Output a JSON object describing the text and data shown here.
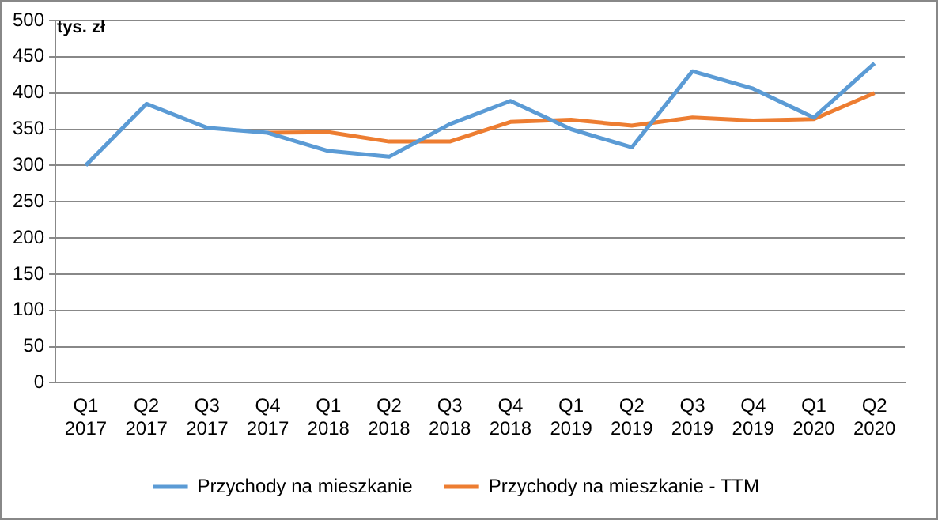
{
  "chart_data": {
    "type": "line",
    "ylabel": "tys. zł",
    "categories": [
      "Q1 2017",
      "Q2 2017",
      "Q3 2017",
      "Q4 2017",
      "Q1 2018",
      "Q2 2018",
      "Q3 2018",
      "Q4 2018",
      "Q1 2019",
      "Q2 2019",
      "Q3 2019",
      "Q4 2019",
      "Q1 2020",
      "Q2 2020"
    ],
    "series": [
      {
        "name": "Przychody na mieszkanie",
        "color": "#5b9bd5",
        "values": [
          300,
          385,
          352,
          345,
          320,
          312,
          357,
          389,
          350,
          325,
          430,
          406,
          366,
          441
        ]
      },
      {
        "name": "Przychody na mieszkanie - TTM",
        "color": "#ed7d31",
        "values": [
          null,
          null,
          null,
          345,
          346,
          333,
          333,
          360,
          363,
          355,
          366,
          362,
          364,
          400
        ]
      }
    ],
    "ylim": [
      0,
      500
    ],
    "yticks": [
      0,
      50,
      100,
      150,
      200,
      250,
      300,
      350,
      400,
      450,
      500
    ],
    "grid": "y",
    "legend": "bottom",
    "marker": "none",
    "line_style": "solid"
  }
}
